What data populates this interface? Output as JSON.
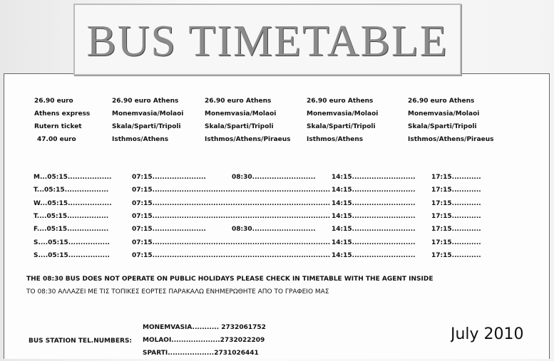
{
  "header": {
    "title": "BUS TIMETABLE"
  },
  "fares": [
    [
      "26.90 euro",
      "Athens express",
      "Rutern ticket",
      "47.00 euro"
    ],
    [
      "26.90 euro Athens",
      "Monemvasia/Molaoi",
      "Skala/Sparti/Tripoli",
      "Isthmos/Athens"
    ],
    [
      "26.90 euro Athens",
      "Monemvasia/Molaoi",
      "Skala/Sparti/Tripoli",
      "Isthmos/Athens/Piraeus"
    ],
    [
      "26.90 euro Athens",
      "Monemvasia/Molaoi",
      "Skala/Sparti/Tripoli",
      "Isthmos/Athens"
    ],
    [
      "26.90 euro Athens",
      "Monemvasia/Molaoi",
      "Skala/Sparti/Tripoli",
      "Isthmos/Athens/Piraeus"
    ]
  ],
  "schedule": {
    "rows": [
      [
        "M...05:15..................",
        "07:15......................",
        "08:30..........................",
        "14:15..........................",
        "17:15............"
      ],
      [
        "T...05:15..................",
        "07:15...........................................................................",
        null,
        "14:15..........................",
        "17:15............"
      ],
      [
        "W...05:15..................",
        "07:15...........................................................................",
        null,
        "14:15..........................",
        "17:15............"
      ],
      [
        "T....05:15.................",
        "07:15...........................................................................",
        null,
        "14:15..........................",
        "17:15............"
      ],
      [
        "F....05:15.................",
        "07:15......................",
        "08:30..........................",
        "14:15..........................",
        "17:15............"
      ],
      [
        "S....05:15.................",
        "07:15...........................................................................",
        null,
        "14:15..........................",
        "17:15............"
      ],
      [
        "S....05:15.................",
        "07:15...........................................................................",
        null,
        "14:15..........................",
        "17:15............"
      ]
    ]
  },
  "notices": [
    "THE 08:30 BUS DOES NOT OPERATE ON PUBLIC HOLIDAYS PLEASE CHECK IN TIMETABLE WITH THE AGENT INSIDE",
    "TO  08:30 ΑΛΛΑΖΕΙ ΜΕ ΤΙΣ ΤΟΠΙΚΕΣ ΕΟΡΤΕΣ ΠΑΡΑΚΑΛΩ ΕΝΗΜΕΡΩΘΗΤΕ ΑΠΟ ΤΟ ΓΡΑΦΕΙΟ ΜΑΣ"
  ],
  "contacts": {
    "label": "BUS STATION TEL.NUMBERS:",
    "phones": [
      "MONEMVASIA........... 2732061752",
      "MOLAOI....................2732022209",
      "SPARTI...................2731026441"
    ]
  },
  "date": "July 2010"
}
